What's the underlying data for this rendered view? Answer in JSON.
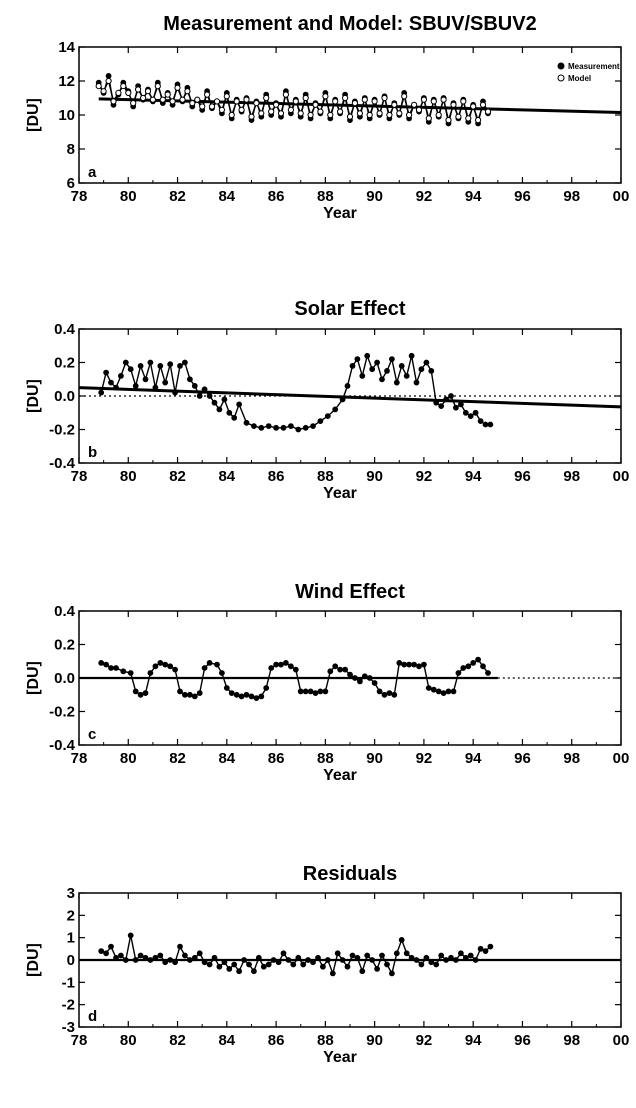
{
  "chart_data": [
    {
      "type": "line",
      "title": "Measurement and Model: SBUV/SBUV2",
      "xlabel": "Year",
      "ylabel": "[DU]",
      "panel_letter": "a",
      "xlim": [
        78,
        100
      ],
      "ylim": [
        6,
        14
      ],
      "xticks": [
        "78",
        "80",
        "82",
        "84",
        "86",
        "88",
        "90",
        "92",
        "94",
        "96",
        "98",
        "00"
      ],
      "yticks": [
        "6",
        "8",
        "10",
        "12",
        "14"
      ],
      "legend": {
        "position": "top-right",
        "entries": [
          "Measurement",
          "Model"
        ]
      },
      "trend_line": {
        "x": [
          78.8,
          100
        ],
        "y": [
          10.95,
          10.15
        ]
      },
      "series": [
        {
          "name": "Measurement",
          "marker": "filled-circle",
          "x": [
            78.8,
            79.0,
            79.2,
            79.4,
            79.6,
            79.8,
            80.0,
            80.2,
            80.4,
            80.6,
            80.8,
            81.0,
            81.2,
            81.4,
            81.6,
            81.8,
            82.0,
            82.2,
            82.4,
            82.6,
            82.8,
            83.0,
            83.2,
            83.4,
            83.6,
            83.8,
            84.0,
            84.2,
            84.4,
            84.6,
            84.8,
            85.0,
            85.2,
            85.4,
            85.6,
            85.8,
            86.0,
            86.2,
            86.4,
            86.6,
            86.8,
            87.0,
            87.2,
            87.4,
            87.6,
            87.8,
            88.0,
            88.2,
            88.4,
            88.6,
            88.8,
            89.0,
            89.2,
            89.4,
            89.6,
            89.8,
            90.0,
            90.2,
            90.4,
            90.6,
            90.8,
            91.0,
            91.2,
            91.4,
            91.6,
            91.8,
            92.0,
            92.2,
            92.4,
            92.6,
            92.8,
            93.0,
            93.2,
            93.4,
            93.6,
            93.8,
            94.0,
            94.2,
            94.4,
            94.6
          ],
          "y": [
            11.9,
            11.3,
            12.3,
            10.6,
            11.2,
            11.9,
            11.4,
            10.5,
            11.7,
            10.9,
            11.5,
            10.8,
            11.9,
            10.7,
            11.3,
            10.6,
            11.8,
            10.8,
            11.6,
            10.5,
            10.9,
            10.3,
            11.4,
            10.4,
            10.8,
            10.1,
            11.3,
            9.8,
            10.9,
            10.2,
            11.0,
            9.7,
            10.8,
            9.9,
            11.2,
            10.0,
            10.7,
            9.9,
            11.4,
            10.1,
            10.9,
            9.9,
            11.2,
            9.8,
            10.7,
            10.1,
            11.3,
            9.8,
            10.9,
            10.1,
            11.2,
            9.7,
            10.8,
            9.9,
            11.0,
            9.8,
            10.9,
            10.0,
            11.1,
            9.8,
            10.7,
            10.0,
            11.3,
            9.8,
            10.6,
            10.2,
            11.0,
            9.6,
            10.9,
            9.9,
            11.0,
            9.5,
            10.7,
            9.8,
            10.9,
            9.6,
            10.6,
            9.5,
            10.8,
            10.1
          ]
        },
        {
          "name": "Model",
          "marker": "open-circle",
          "x": [
            78.8,
            79.0,
            79.2,
            79.4,
            79.6,
            79.8,
            80.0,
            80.2,
            80.4,
            80.6,
            80.8,
            81.0,
            81.2,
            81.4,
            81.6,
            81.8,
            82.0,
            82.2,
            82.4,
            82.6,
            82.8,
            83.0,
            83.2,
            83.4,
            83.6,
            83.8,
            84.0,
            84.2,
            84.4,
            84.6,
            84.8,
            85.0,
            85.2,
            85.4,
            85.6,
            85.8,
            86.0,
            86.2,
            86.4,
            86.6,
            86.8,
            87.0,
            87.2,
            87.4,
            87.6,
            87.8,
            88.0,
            88.2,
            88.4,
            88.6,
            88.8,
            89.0,
            89.2,
            89.4,
            89.6,
            89.8,
            90.0,
            90.2,
            90.4,
            90.6,
            90.8,
            91.0,
            91.2,
            91.4,
            91.6,
            91.8,
            92.0,
            92.2,
            92.4,
            92.6,
            92.8,
            93.0,
            93.2,
            93.4,
            93.6,
            93.8,
            94.0,
            94.2,
            94.4,
            94.6
          ],
          "y": [
            11.7,
            11.4,
            12.0,
            10.8,
            11.3,
            11.7,
            11.3,
            10.7,
            11.5,
            11.0,
            11.4,
            10.9,
            11.7,
            10.9,
            11.2,
            10.8,
            11.6,
            10.9,
            11.4,
            10.7,
            10.9,
            10.5,
            11.2,
            10.5,
            10.8,
            10.3,
            11.1,
            10.0,
            10.8,
            10.3,
            10.9,
            9.9,
            10.7,
            10.1,
            11.0,
            10.2,
            10.6,
            10.1,
            11.2,
            10.3,
            10.8,
            10.1,
            11.0,
            10.0,
            10.6,
            10.2,
            11.1,
            10.0,
            10.8,
            10.2,
            11.0,
            9.9,
            10.7,
            10.1,
            10.9,
            10.0,
            10.8,
            10.1,
            11.0,
            10.0,
            10.6,
            10.1,
            11.1,
            10.0,
            10.6,
            10.3,
            10.9,
            9.8,
            10.8,
            10.0,
            10.9,
            9.7,
            10.6,
            9.9,
            10.8,
            9.8,
            10.5,
            9.7,
            10.6,
            10.2
          ]
        }
      ]
    },
    {
      "type": "line",
      "title": "Solar Effect",
      "xlabel": "Year",
      "ylabel": "[DU]",
      "panel_letter": "b",
      "xlim": [
        78,
        100
      ],
      "ylim": [
        -0.4,
        0.4
      ],
      "xticks": [
        "78",
        "80",
        "82",
        "84",
        "86",
        "88",
        "90",
        "92",
        "94",
        "96",
        "98",
        "00"
      ],
      "yticks": [
        "-0.4",
        "-0.2",
        "0.0",
        "0.2",
        "0.4"
      ],
      "zero_line": "dotted",
      "trend_line": {
        "x": [
          78,
          100
        ],
        "y": [
          0.05,
          -0.065
        ]
      },
      "series": [
        {
          "marker": "filled-circle",
          "x": [
            78.9,
            79.1,
            79.3,
            79.5,
            79.7,
            79.9,
            80.1,
            80.3,
            80.5,
            80.7,
            80.9,
            81.1,
            81.3,
            81.5,
            81.7,
            81.9,
            82.1,
            82.3,
            82.5,
            82.7,
            82.9,
            83.1,
            83.3,
            83.5,
            83.7,
            83.9,
            84.1,
            84.3,
            84.5,
            84.8,
            85.1,
            85.4,
            85.7,
            86.0,
            86.3,
            86.6,
            86.9,
            87.2,
            87.5,
            87.8,
            88.1,
            88.4,
            88.7,
            88.9,
            89.1,
            89.3,
            89.5,
            89.7,
            89.9,
            90.1,
            90.3,
            90.5,
            90.7,
            90.9,
            91.1,
            91.3,
            91.5,
            91.7,
            91.9,
            92.1,
            92.3,
            92.5,
            92.7,
            92.9,
            93.1,
            93.3,
            93.5,
            93.7,
            93.9,
            94.1,
            94.3,
            94.5,
            94.7
          ],
          "y": [
            0.02,
            0.14,
            0.08,
            0.05,
            0.12,
            0.2,
            0.16,
            0.06,
            0.18,
            0.1,
            0.2,
            0.05,
            0.18,
            0.08,
            0.19,
            0.02,
            0.18,
            0.2,
            0.1,
            0.06,
            0.0,
            0.04,
            0.0,
            -0.04,
            -0.08,
            -0.02,
            -0.1,
            -0.13,
            -0.05,
            -0.16,
            -0.18,
            -0.19,
            -0.18,
            -0.19,
            -0.19,
            -0.18,
            -0.2,
            -0.19,
            -0.18,
            -0.15,
            -0.12,
            -0.08,
            -0.02,
            0.06,
            0.18,
            0.22,
            0.12,
            0.24,
            0.16,
            0.2,
            0.1,
            0.15,
            0.22,
            0.08,
            0.18,
            0.12,
            0.24,
            0.08,
            0.16,
            0.2,
            0.15,
            -0.04,
            -0.06,
            -0.02,
            0.0,
            -0.07,
            -0.05,
            -0.1,
            -0.12,
            -0.1,
            -0.15,
            -0.17,
            -0.17
          ]
        }
      ]
    },
    {
      "type": "line",
      "title": "Wind Effect",
      "xlabel": "Year",
      "ylabel": "[DU]",
      "panel_letter": "c",
      "xlim": [
        78,
        100
      ],
      "ylim": [
        -0.4,
        0.4
      ],
      "xticks": [
        "78",
        "80",
        "82",
        "84",
        "86",
        "88",
        "90",
        "92",
        "94",
        "96",
        "98",
        "00"
      ],
      "yticks": [
        "-0.4",
        "-0.2",
        "0.0",
        "0.2",
        "0.4"
      ],
      "zero_line": "solid-to-95-then-dotted",
      "series": [
        {
          "marker": "filled-circle",
          "x": [
            78.9,
            79.1,
            79.3,
            79.5,
            79.8,
            80.1,
            80.3,
            80.5,
            80.7,
            80.9,
            81.1,
            81.3,
            81.5,
            81.7,
            81.9,
            82.1,
            82.3,
            82.5,
            82.7,
            82.9,
            83.1,
            83.3,
            83.6,
            83.8,
            84.0,
            84.2,
            84.4,
            84.6,
            84.8,
            85.0,
            85.2,
            85.4,
            85.6,
            85.8,
            86.0,
            86.2,
            86.4,
            86.6,
            86.8,
            87.0,
            87.2,
            87.4,
            87.6,
            87.8,
            88.0,
            88.2,
            88.4,
            88.6,
            88.8,
            89.0,
            89.2,
            89.4,
            89.6,
            89.8,
            90.0,
            90.2,
            90.4,
            90.6,
            90.8,
            91.0,
            91.2,
            91.4,
            91.6,
            91.8,
            92.0,
            92.2,
            92.4,
            92.6,
            92.8,
            93.0,
            93.2,
            93.4,
            93.6,
            93.8,
            94.0,
            94.2,
            94.4,
            94.6
          ],
          "y": [
            0.09,
            0.08,
            0.06,
            0.06,
            0.04,
            0.03,
            -0.08,
            -0.1,
            -0.09,
            0.03,
            0.07,
            0.09,
            0.08,
            0.07,
            0.05,
            -0.08,
            -0.1,
            -0.1,
            -0.11,
            -0.09,
            0.06,
            0.09,
            0.08,
            0.03,
            -0.06,
            -0.09,
            -0.1,
            -0.11,
            -0.1,
            -0.11,
            -0.12,
            -0.11,
            -0.06,
            0.06,
            0.08,
            0.08,
            0.09,
            0.07,
            0.05,
            -0.08,
            -0.08,
            -0.08,
            -0.09,
            -0.08,
            -0.08,
            0.04,
            0.07,
            0.05,
            0.05,
            0.02,
            0.0,
            -0.02,
            0.01,
            0.0,
            -0.03,
            -0.08,
            -0.1,
            -0.09,
            -0.1,
            0.09,
            0.08,
            0.08,
            0.08,
            0.07,
            0.08,
            -0.06,
            -0.07,
            -0.08,
            -0.09,
            -0.08,
            -0.08,
            0.03,
            0.06,
            0.07,
            0.09,
            0.11,
            0.07,
            0.03
          ]
        }
      ]
    },
    {
      "type": "line",
      "title": "Residuals",
      "xlabel": "Year",
      "ylabel": "[DU]",
      "panel_letter": "d",
      "xlim": [
        78,
        100
      ],
      "ylim": [
        -3,
        3
      ],
      "xticks": [
        "78",
        "80",
        "82",
        "84",
        "86",
        "88",
        "90",
        "92",
        "94",
        "96",
        "98",
        "00"
      ],
      "yticks": [
        "-3",
        "-2",
        "-1",
        "0",
        "1",
        "2",
        "3"
      ],
      "zero_line": "solid",
      "series": [
        {
          "marker": "filled-circle",
          "x": [
            78.9,
            79.1,
            79.3,
            79.5,
            79.7,
            79.9,
            80.1,
            80.3,
            80.5,
            80.7,
            80.9,
            81.1,
            81.3,
            81.5,
            81.7,
            81.9,
            82.1,
            82.3,
            82.5,
            82.7,
            82.9,
            83.1,
            83.3,
            83.5,
            83.7,
            83.9,
            84.1,
            84.3,
            84.5,
            84.7,
            84.9,
            85.1,
            85.3,
            85.5,
            85.7,
            85.9,
            86.1,
            86.3,
            86.5,
            86.7,
            86.9,
            87.1,
            87.3,
            87.5,
            87.7,
            87.9,
            88.1,
            88.3,
            88.5,
            88.7,
            88.9,
            89.1,
            89.3,
            89.5,
            89.7,
            89.9,
            90.1,
            90.3,
            90.5,
            90.7,
            90.9,
            91.1,
            91.3,
            91.5,
            91.7,
            91.9,
            92.1,
            92.3,
            92.5,
            92.7,
            92.9,
            93.1,
            93.3,
            93.5,
            93.7,
            93.9,
            94.1,
            94.3,
            94.5,
            94.7
          ],
          "y": [
            0.4,
            0.3,
            0.6,
            0.1,
            0.2,
            0.0,
            1.1,
            0.0,
            0.2,
            0.1,
            0.0,
            0.1,
            0.2,
            -0.1,
            0.0,
            -0.1,
            0.6,
            0.2,
            0.0,
            0.1,
            0.3,
            -0.1,
            -0.2,
            0.1,
            -0.3,
            -0.1,
            -0.4,
            -0.2,
            -0.5,
            0.0,
            -0.2,
            -0.5,
            0.1,
            -0.3,
            -0.2,
            0.0,
            -0.1,
            0.3,
            0.0,
            -0.2,
            0.1,
            -0.2,
            0.0,
            -0.1,
            0.1,
            -0.3,
            0.0,
            -0.6,
            0.3,
            0.0,
            -0.3,
            0.2,
            0.1,
            -0.5,
            0.2,
            0.0,
            -0.4,
            0.2,
            -0.2,
            -0.6,
            0.3,
            0.9,
            0.3,
            0.1,
            0.0,
            -0.2,
            0.1,
            -0.1,
            -0.2,
            0.2,
            0.0,
            0.1,
            0.0,
            0.3,
            0.1,
            0.2,
            0.0,
            0.5,
            0.4,
            0.6
          ]
        }
      ]
    }
  ],
  "legend_labels": {
    "measurement": "Measurement",
    "model": "Model"
  }
}
